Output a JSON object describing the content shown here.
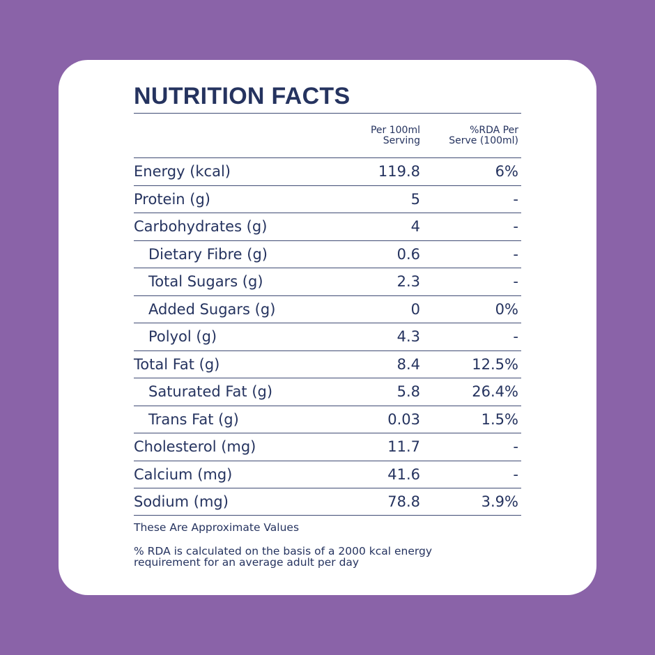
{
  "title": "NUTRITION FACTS",
  "headers": {
    "serving": [
      "Per 100ml",
      "Serving"
    ],
    "rda": [
      "%RDA Per",
      "Serve (100ml)"
    ]
  },
  "rows": [
    {
      "name": "Energy (kcal)",
      "serving": "119.8",
      "rda": "6%",
      "indent": false
    },
    {
      "name": "Protein (g)",
      "serving": "5",
      "rda": "-",
      "indent": false
    },
    {
      "name": "Carbohydrates (g)",
      "serving": "4",
      "rda": "-",
      "indent": false
    },
    {
      "name": "Dietary Fibre (g)",
      "serving": "0.6",
      "rda": "-",
      "indent": true
    },
    {
      "name": "Total Sugars (g)",
      "serving": "2.3",
      "rda": "-",
      "indent": true
    },
    {
      "name": "Added Sugars (g)",
      "serving": "0",
      "rda": "0%",
      "indent": true
    },
    {
      "name": "Polyol (g)",
      "serving": "4.3",
      "rda": "-",
      "indent": true
    },
    {
      "name": "Total Fat (g)",
      "serving": "8.4",
      "rda": "12.5%",
      "indent": false
    },
    {
      "name": "Saturated Fat (g)",
      "serving": "5.8",
      "rda": "26.4%",
      "indent": true
    },
    {
      "name": "Trans Fat (g)",
      "serving": "0.03",
      "rda": "1.5%",
      "indent": true
    },
    {
      "name": "Cholesterol (mg)",
      "serving": "11.7",
      "rda": "-",
      "indent": false
    },
    {
      "name": "Calcium (mg)",
      "serving": "41.6",
      "rda": "-",
      "indent": false
    },
    {
      "name": "Sodium (mg)",
      "serving": "78.8",
      "rda": "3.9%",
      "indent": false
    }
  ],
  "notes": {
    "approx": "These Are Approximate Values",
    "rda_line1": "% RDA is calculated on the basis of a 2000 kcal energy",
    "rda_line2": "requirement for an average adult per day"
  },
  "colors": {
    "background": "#8a63a8",
    "card": "#ffffff",
    "text": "#25335f"
  }
}
